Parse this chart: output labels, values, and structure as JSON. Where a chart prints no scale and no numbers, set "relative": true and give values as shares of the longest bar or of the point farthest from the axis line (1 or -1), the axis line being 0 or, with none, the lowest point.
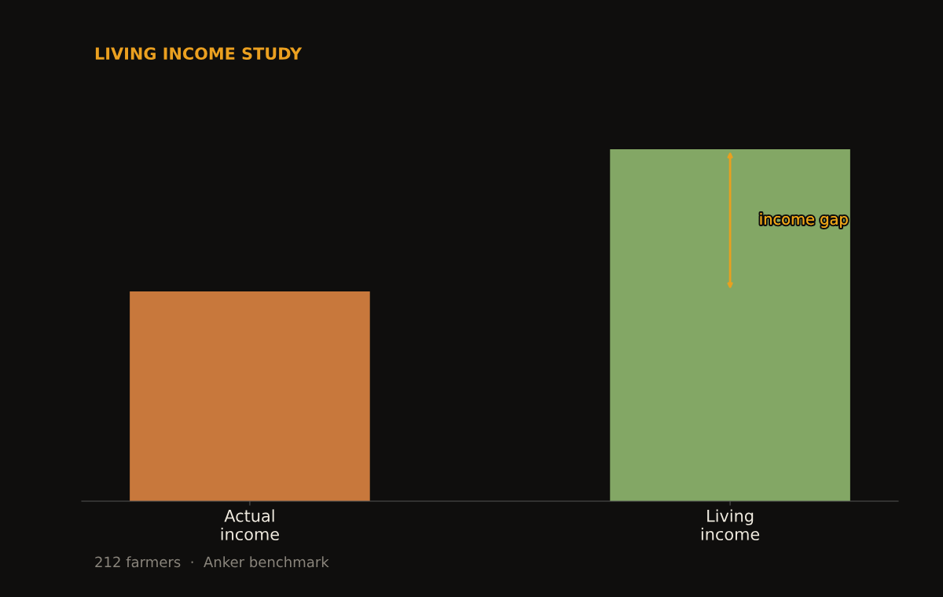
{
  "chart_data": {
    "type": "bar",
    "title": "LIVING INCOME STUDY",
    "categories": [
      "Actual\nincome",
      "Living\nincome"
    ],
    "values": [
      0.596,
      1
    ],
    "colors": [
      "#c8783c",
      "#83a765"
    ],
    "relative": true,
    "grid": false,
    "annotations": [
      "income gap",
      "212 farmers  ·  Anker benchmark"
    ]
  }
}
